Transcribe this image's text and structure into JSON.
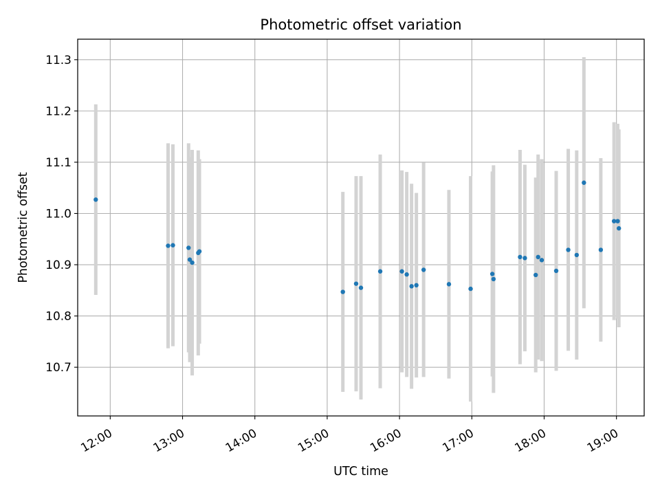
{
  "chart_data": {
    "type": "scatter",
    "title": "Photometric offset variation",
    "xlabel": "UTC time",
    "ylabel": "Photometric offset",
    "x_ticks": [
      "12:00",
      "13:00",
      "14:00",
      "15:00",
      "16:00",
      "17:00",
      "18:00",
      "19:00"
    ],
    "y_ticks": [
      "10.7",
      "10.8",
      "10.9",
      "11.0",
      "11.1",
      "11.2",
      "11.3"
    ],
    "xlim": [
      "11:33",
      "19:23"
    ],
    "ylim": [
      10.605,
      11.34
    ],
    "grid": true,
    "errorbar_color": "#d3d3d3",
    "point_color": "#1f77b4",
    "points": [
      {
        "x": "11:48",
        "y": 11.027,
        "err": 0.186
      },
      {
        "x": "12:48",
        "y": 10.937,
        "err": 0.2
      },
      {
        "x": "12:52",
        "y": 10.938,
        "err": 0.197
      },
      {
        "x": "13:05",
        "y": 10.933,
        "err": 0.204
      },
      {
        "x": "13:06",
        "y": 10.91,
        "err": 0.2
      },
      {
        "x": "13:08",
        "y": 10.904,
        "err": 0.22
      },
      {
        "x": "13:13",
        "y": 10.923,
        "err": 0.2
      },
      {
        "x": "13:14",
        "y": 10.926,
        "err": 0.18
      },
      {
        "x": "15:13",
        "y": 10.847,
        "err": 0.195
      },
      {
        "x": "15:24",
        "y": 10.863,
        "err": 0.21
      },
      {
        "x": "15:28",
        "y": 10.855,
        "err": 0.218
      },
      {
        "x": "15:44",
        "y": 10.887,
        "err": 0.228
      },
      {
        "x": "16:02",
        "y": 10.887,
        "err": 0.197
      },
      {
        "x": "16:06",
        "y": 10.881,
        "err": 0.2
      },
      {
        "x": "16:10",
        "y": 10.858,
        "err": 0.2
      },
      {
        "x": "16:14",
        "y": 10.86,
        "err": 0.18
      },
      {
        "x": "16:20",
        "y": 10.89,
        "err": 0.209
      },
      {
        "x": "16:41",
        "y": 10.862,
        "err": 0.184
      },
      {
        "x": "16:59",
        "y": 10.853,
        "err": 0.22
      },
      {
        "x": "17:17",
        "y": 10.882,
        "err": 0.2
      },
      {
        "x": "17:18",
        "y": 10.872,
        "err": 0.222
      },
      {
        "x": "17:40",
        "y": 10.915,
        "err": 0.209
      },
      {
        "x": "17:44",
        "y": 10.913,
        "err": 0.182
      },
      {
        "x": "17:53",
        "y": 10.88,
        "err": 0.19
      },
      {
        "x": "17:55",
        "y": 10.915,
        "err": 0.2
      },
      {
        "x": "17:58",
        "y": 10.909,
        "err": 0.197
      },
      {
        "x": "18:10",
        "y": 10.888,
        "err": 0.195
      },
      {
        "x": "18:20",
        "y": 10.929,
        "err": 0.197
      },
      {
        "x": "18:27",
        "y": 10.919,
        "err": 0.204
      },
      {
        "x": "18:33",
        "y": 11.06,
        "err": 0.245
      },
      {
        "x": "18:47",
        "y": 10.929,
        "err": 0.179
      },
      {
        "x": "18:58",
        "y": 10.985,
        "err": 0.193
      },
      {
        "x": "19:01",
        "y": 10.985,
        "err": 0.19
      },
      {
        "x": "19:02",
        "y": 10.971,
        "err": 0.193
      }
    ]
  }
}
